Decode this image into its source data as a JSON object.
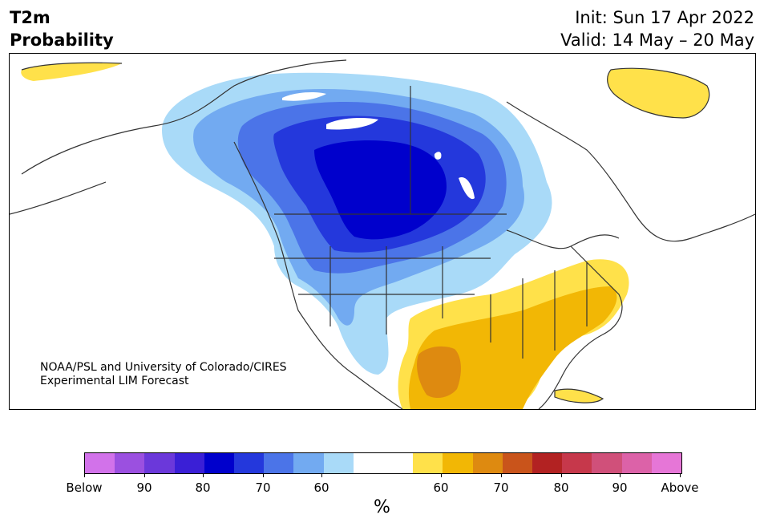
{
  "header": {
    "title_line1": "T2m",
    "title_line2": "Probability",
    "init": "Init: Sun 17 Apr 2022",
    "valid": "Valid: 14 May – 20 May"
  },
  "credit": {
    "line1": "NOAA/PSL and University of Colorado/CIRES",
    "line2": "Experimental LIM Forecast"
  },
  "colorbar": {
    "unit": "%",
    "colors": [
      "#d272ea",
      "#9b50e0",
      "#6b38da",
      "#3a1fd6",
      "#0000cc",
      "#2438dc",
      "#4b74e8",
      "#72aaf1",
      "#a9daf8",
      "#ffffff",
      "#ffffff",
      "#ffe14a",
      "#f2b705",
      "#de8a10",
      "#c9541b",
      "#b22222",
      "#c6384b",
      "#d0507a",
      "#dc62a8",
      "#e676d7"
    ],
    "tick_labels": [
      "Below",
      "90",
      "80",
      "70",
      "60",
      "60",
      "70",
      "80",
      "90",
      "Above"
    ]
  },
  "map_regions": {
    "below_60": "#a9daf8",
    "below_70": "#72aaf1",
    "below_75": "#4b74e8",
    "below_80": "#2438dc",
    "below_85": "#0000cc",
    "above_60": "#ffe14a",
    "above_70": "#f2b705",
    "above_75": "#de8a10"
  }
}
